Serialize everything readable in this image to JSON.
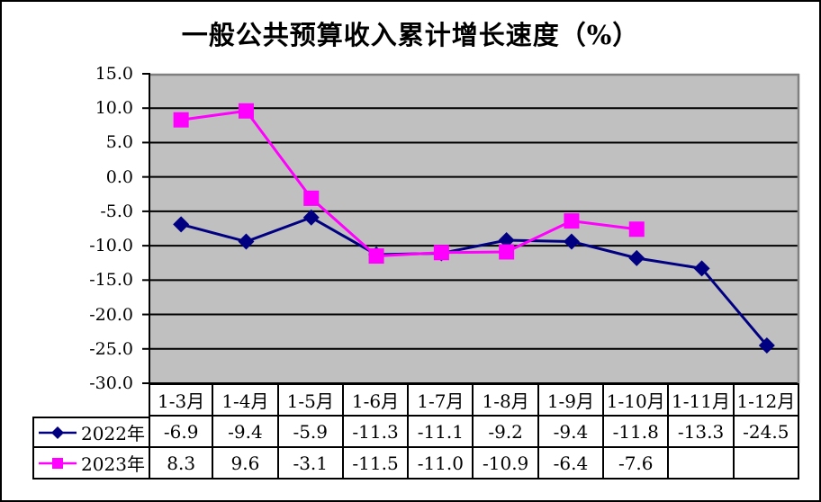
{
  "title": "一般公共预算收入累计增长速度（%）",
  "colors": {
    "plot_background": "#c0c0c0",
    "gridline": "#000000",
    "plot_border_shadow": "#808080",
    "axis": "#000000",
    "series_2022": "#000080",
    "series_2023": "#ff00ff",
    "frame_border": "#000000"
  },
  "chart_data": {
    "type": "line",
    "title": "一般公共预算收入累计增长速度（%）",
    "categories": [
      "1-3月",
      "1-4月",
      "1-5月",
      "1-6月",
      "1-7月",
      "1-8月",
      "1-9月",
      "1-10月",
      "1-11月",
      "1-12月"
    ],
    "series": [
      {
        "name": "2022年",
        "color": "#000080",
        "marker": "diamond",
        "values": [
          -6.9,
          -9.4,
          -5.9,
          -11.3,
          -11.1,
          -9.2,
          -9.4,
          -11.8,
          -13.3,
          -24.5
        ]
      },
      {
        "name": "2023年",
        "color": "#ff00ff",
        "marker": "square",
        "values": [
          8.3,
          9.6,
          -3.1,
          -11.5,
          -11.0,
          -10.9,
          -6.4,
          -7.6,
          null,
          null
        ]
      }
    ],
    "ylim": [
      -30.0,
      15.0
    ],
    "ytick_step": 5.0,
    "ytick_labels": [
      "15.0",
      "10.0",
      "5.0",
      "0.0",
      "-5.0",
      "-10.0",
      "-15.0",
      "-20.0",
      "-25.0",
      "-30.0"
    ],
    "grid": true,
    "plot_bg": "#c0c0c0",
    "legend_position": "data-table-left"
  },
  "table": {
    "header_cells": [
      "1-3月",
      "1-4月",
      "1-5月",
      "1-6月",
      "1-7月",
      "1-8月",
      "1-9月",
      "1-10月",
      "1-11月",
      "1-12月"
    ],
    "rows": [
      {
        "label": "2022年",
        "cells": [
          "-6.9",
          "-9.4",
          "-5.9",
          "-11.3",
          "-11.1",
          "-9.2",
          "-9.4",
          "-11.8",
          "-13.3",
          "-24.5"
        ]
      },
      {
        "label": "2023年",
        "cells": [
          "8.3",
          "9.6",
          "-3.1",
          "-11.5",
          "-11.0",
          "-10.9",
          "-6.4",
          "-7.6",
          "",
          ""
        ]
      }
    ]
  }
}
